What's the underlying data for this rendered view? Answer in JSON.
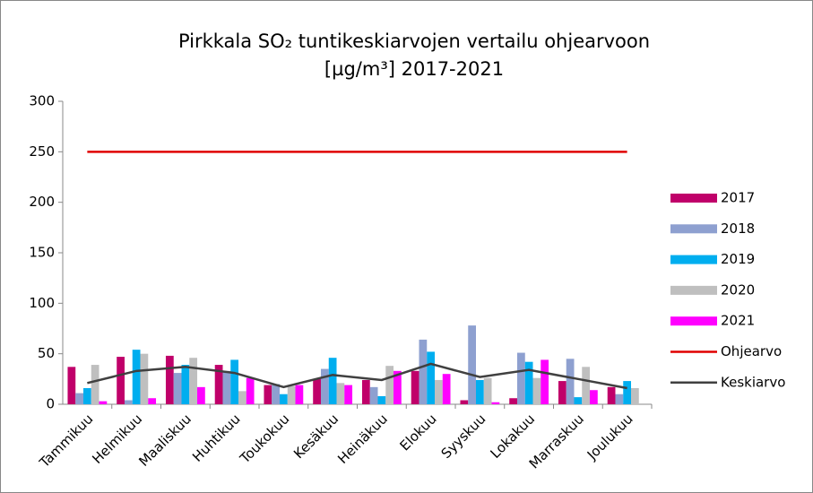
{
  "chart_data": {
    "type": "bar",
    "title": "Pirkkala SO₂ tuntikeskiarvojen vertailu ohjearvoon",
    "subtitle": "[µg/m³] 2017-2021",
    "categories": [
      "Tammikuu",
      "Helmikuu",
      "Maaliskuu",
      "Huhtikuu",
      "Toukokuu",
      "Kesäkuu",
      "Heinäkuu",
      "Elokuu",
      "Syyskuu",
      "Lokakuu",
      "Marraskuu",
      "Joulukuu"
    ],
    "series": [
      {
        "name": "2017",
        "color": "#c0006a",
        "values": [
          37,
          47,
          48,
          39,
          19,
          25,
          24,
          33,
          4,
          6,
          23,
          17
        ]
      },
      {
        "name": "2018",
        "color": "#8ea0d0",
        "values": [
          11,
          4,
          31,
          33,
          20,
          35,
          17,
          64,
          78,
          51,
          45,
          10
        ]
      },
      {
        "name": "2019",
        "color": "#00aeef",
        "values": [
          16,
          54,
          39,
          44,
          10,
          46,
          8,
          52,
          24,
          42,
          7,
          23
        ]
      },
      {
        "name": "2020",
        "color": "#bfbfbf",
        "values": [
          39,
          50,
          46,
          13,
          18,
          21,
          38,
          24,
          26,
          26,
          37,
          16
        ]
      },
      {
        "name": "2021",
        "color": "#ff00ff",
        "values": [
          3,
          6,
          17,
          26,
          19,
          19,
          33,
          30,
          2,
          44,
          14,
          null
        ]
      },
      {
        "name": "Ohjearvo",
        "color": "#e00000",
        "type": "line",
        "values": [
          250,
          250,
          250,
          250,
          250,
          250,
          250,
          250,
          250,
          250,
          250,
          250
        ]
      },
      {
        "name": "Keskiarvo",
        "color": "#404040",
        "type": "line",
        "values": [
          21,
          33,
          37,
          31,
          17,
          29,
          24,
          40,
          27,
          34,
          25,
          16
        ]
      }
    ],
    "ylim": [
      0,
      300
    ],
    "yticks": [
      0,
      50,
      100,
      150,
      200,
      250,
      300
    ],
    "grid": false,
    "legend": "right"
  }
}
